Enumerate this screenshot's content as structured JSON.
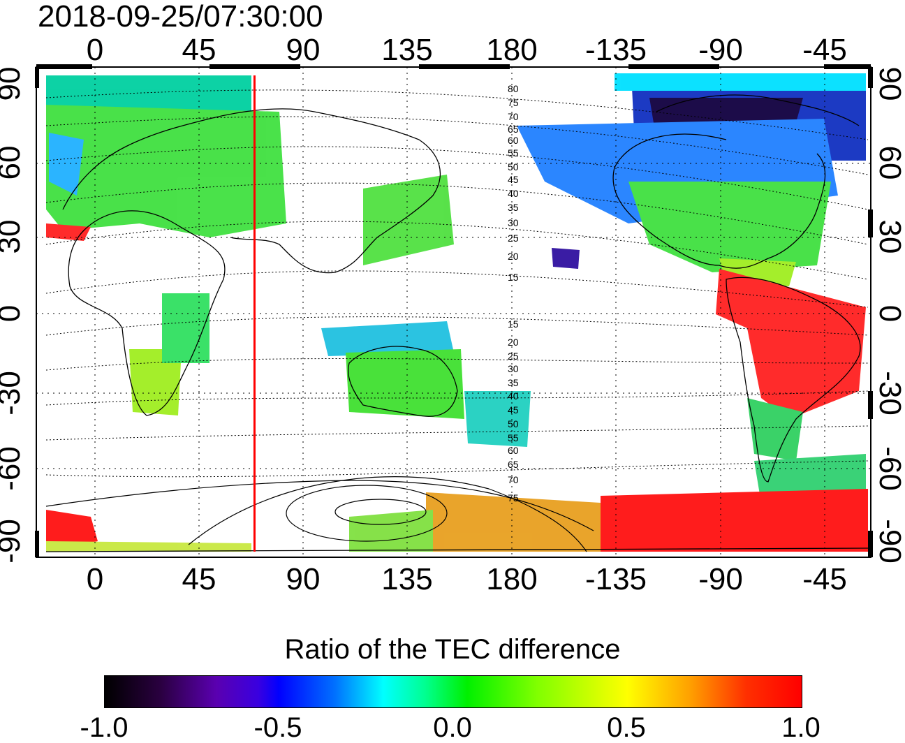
{
  "timestamp": "2018-09-25/07:30:00",
  "x_ticks": [
    "0",
    "45",
    "90",
    "135",
    "180",
    "-135",
    "-90",
    "-45"
  ],
  "y_ticks_left": [
    "90",
    "60",
    "30",
    "0",
    "-30",
    "-60",
    "-90"
  ],
  "y_ticks_right": [
    "90",
    "60",
    "30",
    "0",
    "-30",
    "-60",
    "-90"
  ],
  "contour_labels": {
    "north": [
      "80",
      "75",
      "70",
      "65",
      "60",
      "55",
      "50",
      "45",
      "40",
      "35",
      "30",
      "25",
      "20",
      "15"
    ],
    "south": [
      "15",
      "20",
      "25",
      "30",
      "35",
      "40",
      "45",
      "50",
      "55",
      "60",
      "65",
      "70",
      "75"
    ]
  },
  "colorbar": {
    "title": "Ratio of the TEC difference",
    "ticks": [
      "-1.0",
      "-0.5",
      "0.0",
      "0.5",
      "1.0"
    ],
    "range": [
      -1.0,
      1.0
    ],
    "colormap": [
      "#000000",
      "#5a00b0",
      "#0000ff",
      "#00ffff",
      "#00f000",
      "#ffff00",
      "#ff0000"
    ]
  },
  "map": {
    "longitude_range": [
      -20,
      340
    ],
    "latitude_range": [
      -90,
      90
    ],
    "marker_longitude": 69,
    "marker_color": "#ff0000",
    "ratio_patches": [
      {
        "region": "europe",
        "value": 0.1
      },
      {
        "region": "north-atlantic-north",
        "value": -0.3
      },
      {
        "region": "canada",
        "value": -0.6
      },
      {
        "region": "greenland-arctic",
        "value": -0.9
      },
      {
        "region": "usa",
        "value": 0.1
      },
      {
        "region": "south-america",
        "value": 0.95
      },
      {
        "region": "australia",
        "value": 0.15
      },
      {
        "region": "southern-africa",
        "value": 0.2
      },
      {
        "region": "antarctica-west",
        "value": 0.9
      },
      {
        "region": "antarctica-east",
        "value": 0.9
      }
    ]
  }
}
